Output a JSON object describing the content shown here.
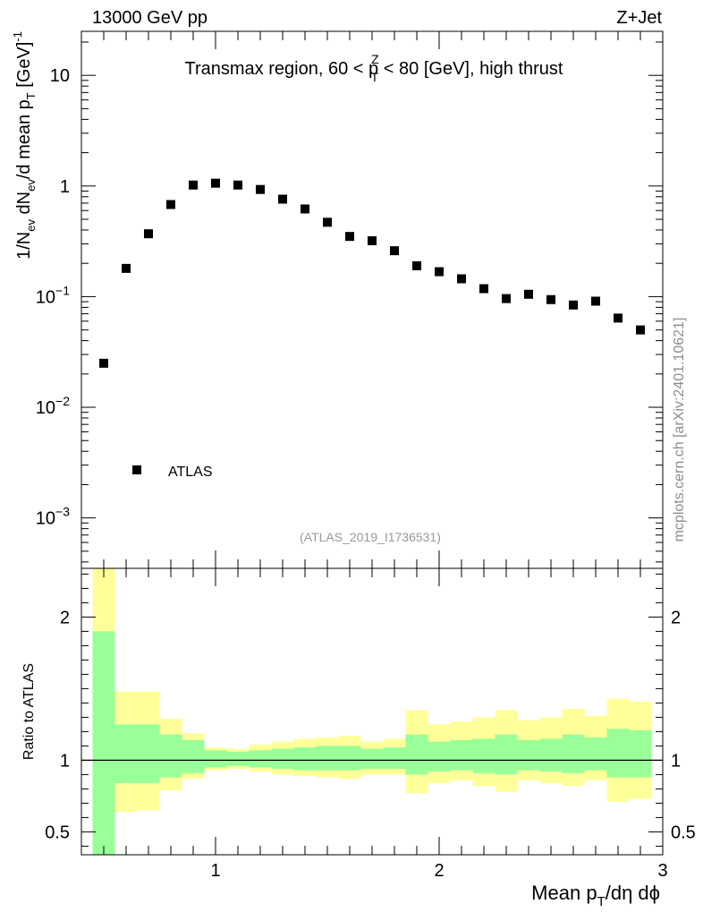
{
  "header": {
    "left": "13000 GeV pp",
    "right": "Z+Jet"
  },
  "watermark": "mcplots.cern.ch [arXiv:2401.10621]",
  "chart_data": [
    {
      "type": "scatter",
      "panel": "main",
      "title_parts": {
        "prefix": "Transmax region, 60 < p",
        "sup": "Z",
        "sub": "T",
        "suffix": " < 80 [GeV], high thrust"
      },
      "ylabel_parts": [
        "1/N",
        "ev",
        " dN",
        "ev",
        "/d mean p",
        "T",
        " [GeV]",
        "-1"
      ],
      "yscale": "log",
      "ylim": [
        0.00035,
        25
      ],
      "xlim": [
        0.4,
        3.0
      ],
      "ytick_labels": [
        {
          "value": 10,
          "base": "10",
          "exp": ""
        },
        {
          "value": 1,
          "base": "1",
          "exp": ""
        },
        {
          "value": 0.1,
          "base": "10",
          "exp": "−1"
        },
        {
          "value": 0.01,
          "base": "10",
          "exp": "−2"
        },
        {
          "value": 0.001,
          "base": "10",
          "exp": "−3"
        }
      ],
      "legend": {
        "label": "ATLAS",
        "placement": "lower-left"
      },
      "annotation": "(ATLAS_2019_I1736531)",
      "series": [
        {
          "name": "ATLAS",
          "x": [
            0.5,
            0.6,
            0.7,
            0.8,
            0.9,
            1.0,
            1.1,
            1.2,
            1.3,
            1.4,
            1.5,
            1.6,
            1.7,
            1.8,
            1.9,
            2.0,
            2.1,
            2.2,
            2.3,
            2.4,
            2.5,
            2.6,
            2.7,
            2.8,
            2.9
          ],
          "y": [
            0.025,
            0.18,
            0.37,
            0.68,
            1.02,
            1.06,
            1.02,
            0.93,
            0.76,
            0.62,
            0.47,
            0.35,
            0.32,
            0.26,
            0.19,
            0.168,
            0.145,
            0.118,
            0.096,
            0.105,
            0.094,
            0.084,
            0.091,
            0.064,
            0.05
          ]
        }
      ]
    },
    {
      "type": "area",
      "panel": "ratio",
      "ylabel": "Ratio to ATLAS",
      "xlabel_parts": [
        "Mean p",
        "T",
        "/dη dϕ"
      ],
      "xlim": [
        0.4,
        3.0
      ],
      "ylim": [
        0.34,
        2.34
      ],
      "xtick_labels": [
        "1",
        "2",
        "3"
      ],
      "ytick_labels": [
        "2",
        "1",
        "0.5"
      ],
      "bin_edges": [
        0.45,
        0.55,
        0.65,
        0.75,
        0.85,
        0.95,
        1.05,
        1.15,
        1.25,
        1.35,
        1.45,
        1.55,
        1.65,
        1.75,
        1.85,
        1.95,
        2.05,
        2.15,
        2.25,
        2.35,
        2.45,
        2.55,
        2.65,
        2.75,
        2.85,
        2.95
      ],
      "band_inner": {
        "color": "#99ff99",
        "low": [
          0.34,
          0.84,
          0.84,
          0.88,
          0.91,
          0.95,
          0.96,
          0.95,
          0.94,
          0.93,
          0.93,
          0.93,
          0.94,
          0.94,
          0.9,
          0.92,
          0.93,
          0.91,
          0.9,
          0.93,
          0.92,
          0.91,
          0.93,
          0.88,
          0.88
        ],
        "high": [
          1.9,
          1.25,
          1.25,
          1.18,
          1.14,
          1.07,
          1.06,
          1.07,
          1.08,
          1.09,
          1.1,
          1.1,
          1.08,
          1.09,
          1.18,
          1.13,
          1.14,
          1.15,
          1.18,
          1.14,
          1.15,
          1.18,
          1.16,
          1.22,
          1.21
        ]
      },
      "band_outer": {
        "color": "#ffff99",
        "low": [
          0.34,
          0.64,
          0.65,
          0.79,
          0.87,
          0.93,
          0.94,
          0.92,
          0.9,
          0.89,
          0.88,
          0.87,
          0.9,
          0.9,
          0.77,
          0.84,
          0.86,
          0.82,
          0.78,
          0.86,
          0.84,
          0.82,
          0.86,
          0.71,
          0.73
        ],
        "high": [
          2.34,
          1.48,
          1.48,
          1.29,
          1.19,
          1.09,
          1.08,
          1.11,
          1.13,
          1.15,
          1.16,
          1.17,
          1.13,
          1.15,
          1.35,
          1.25,
          1.27,
          1.3,
          1.35,
          1.28,
          1.3,
          1.36,
          1.31,
          1.43,
          1.41
        ]
      },
      "reference_line": 1
    }
  ]
}
